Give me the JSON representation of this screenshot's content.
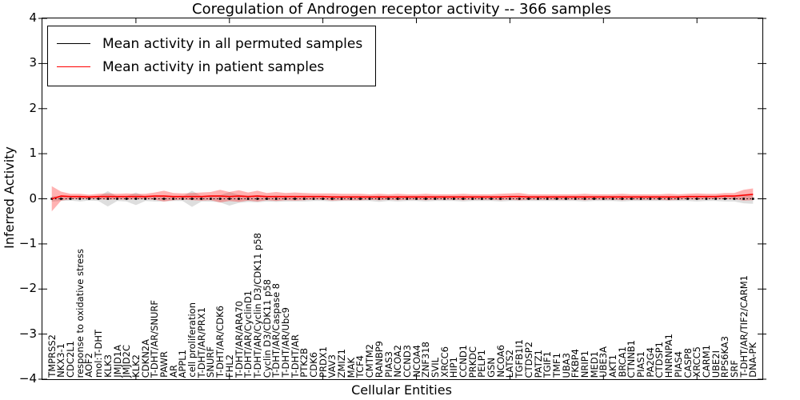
{
  "figure": {
    "title": "Coregulation of Androgen receptor activity -- 366 samples",
    "xlabel": "Cellular Entities",
    "ylabel": "Inferred Activity"
  },
  "legend": {
    "items": [
      {
        "label": "Mean activity in all permuted samples",
        "color": "#000000"
      },
      {
        "label": "Mean activity in patient samples",
        "color": "#ff0000"
      }
    ]
  },
  "chart_data": {
    "type": "line",
    "title": "Coregulation of Androgen receptor activity -- 366 samples",
    "xlabel": "Cellular Entities",
    "ylabel": "Inferred Activity",
    "ylim": [
      -4,
      4
    ],
    "yticks": [
      4,
      3,
      2,
      1,
      0,
      -1,
      -2,
      -3,
      -4
    ],
    "grid": false,
    "legend_position": "upper left",
    "band_note": "values are series means; band = +/- spread shaded around each mean",
    "categories": [
      "TMPRSS2",
      "NKX3-1",
      "CDC2L1",
      "response to oxidative stress",
      "AOF2",
      "mol:T-DHT",
      "KLK3",
      "JMJD1A",
      "JMJD2C",
      "KLK2",
      "CDKN2A",
      "T-DHT/AR/SNURF",
      "PAWR",
      "AR",
      "APPL1",
      "cell proliferation",
      "T-DHT/AR/PRX1",
      "SNURF",
      "T-DHT/AR/CDK6",
      "FHL2",
      "T-DHT/AR/ARA70",
      "T-DHT/AR/CyclinD1",
      "T-DHT/AR/Cyclin D3/CDK11 p58",
      "Cyclin D3/CDK11 p58",
      "T-DHT/AR/Caspase 8",
      "T-DHT/AR/Ubc9",
      "T-DHT/AR",
      "PTK2B",
      "CDK6",
      "PRDX1",
      "VAV3",
      "ZMIZ1",
      "MAK",
      "TCF4",
      "CMTM2",
      "RANBP9",
      "PIAS3",
      "NCOA2",
      "CCND3",
      "NCOA4",
      "ZNF318",
      "SVIL",
      "XRCC6",
      "HIP1",
      "CCND1",
      "PRKDC",
      "PELP1",
      "GSN",
      "NCOA6",
      "LATS2",
      "TGFB1I1",
      "CTDSP2",
      "PATZ1",
      "TGIF1",
      "TMF1",
      "UBA3",
      "FKBP4",
      "NRIP1",
      "MED1",
      "UBE3A",
      "AKT1",
      "BRCA1",
      "CTNNB1",
      "PIAS1",
      "PA2G4",
      "CTDSP1",
      "HNRNPA1",
      "PIAS4",
      "CASP8",
      "XRCC5",
      "CARM1",
      "UBE2I",
      "RPS6KA3",
      "SRF",
      "T-DHT/AR/TIF2/CARM1",
      "DNA-PK"
    ],
    "series": [
      {
        "name": "Mean activity in all permuted samples",
        "color": "#000000",
        "style": "dotted-square-markers",
        "band_color": "#888888",
        "band_opacity": 0.28,
        "values": [
          0,
          0,
          0,
          0,
          0,
          0,
          0,
          0,
          0,
          0,
          0,
          0,
          0,
          0,
          0,
          0,
          0,
          0,
          0,
          0,
          0,
          0,
          0,
          0,
          0,
          0,
          0,
          0,
          0,
          0,
          0,
          0,
          0,
          0,
          0,
          0,
          0,
          0,
          0,
          0,
          0,
          0,
          0,
          0,
          0,
          0,
          0,
          0,
          0,
          0,
          0,
          0,
          0,
          0,
          0,
          0,
          0,
          0,
          0,
          0,
          0,
          0,
          0,
          0,
          0,
          0,
          0,
          0,
          0,
          0,
          0,
          0,
          0,
          0,
          0,
          0
        ],
        "band": [
          0.06,
          0.05,
          0.04,
          0.06,
          0.04,
          0.05,
          0.17,
          0.05,
          0.06,
          0.14,
          0.05,
          0.06,
          0.06,
          0.05,
          0.05,
          0.18,
          0.06,
          0.06,
          0.08,
          0.15,
          0.09,
          0.07,
          0.08,
          0.06,
          0.07,
          0.06,
          0.06,
          0.06,
          0.05,
          0.05,
          0.06,
          0.05,
          0.05,
          0.05,
          0.05,
          0.07,
          0.05,
          0.06,
          0.05,
          0.05,
          0.06,
          0.05,
          0.05,
          0.05,
          0.06,
          0.05,
          0.05,
          0.05,
          0.06,
          0.05,
          0.05,
          0.05,
          0.05,
          0.05,
          0.05,
          0.05,
          0.05,
          0.06,
          0.05,
          0.05,
          0.05,
          0.06,
          0.05,
          0.05,
          0.05,
          0.05,
          0.05,
          0.05,
          0.05,
          0.06,
          0.05,
          0.05,
          0.06,
          0.06,
          0.1,
          0.11
        ]
      },
      {
        "name": "Mean activity in patient samples",
        "color": "#ff0000",
        "style": "solid",
        "band_color": "#ff0000",
        "band_opacity": 0.3,
        "values": [
          0.0,
          0.06,
          0.05,
          0.05,
          0.04,
          0.05,
          0.05,
          0.05,
          0.05,
          0.05,
          0.05,
          0.06,
          0.06,
          0.05,
          0.05,
          0.05,
          0.05,
          0.06,
          0.06,
          0.05,
          0.06,
          0.05,
          0.06,
          0.05,
          0.05,
          0.05,
          0.05,
          0.05,
          0.05,
          0.05,
          0.04,
          0.04,
          0.04,
          0.04,
          0.04,
          0.04,
          0.04,
          0.04,
          0.04,
          0.04,
          0.04,
          0.04,
          0.04,
          0.04,
          0.04,
          0.04,
          0.04,
          0.04,
          0.04,
          0.05,
          0.05,
          0.04,
          0.04,
          0.04,
          0.04,
          0.04,
          0.04,
          0.04,
          0.04,
          0.04,
          0.04,
          0.04,
          0.04,
          0.04,
          0.04,
          0.04,
          0.04,
          0.04,
          0.05,
          0.05,
          0.05,
          0.05,
          0.06,
          0.06,
          0.08,
          0.1
        ],
        "band": [
          0.28,
          0.1,
          0.06,
          0.06,
          0.05,
          0.06,
          0.07,
          0.06,
          0.07,
          0.06,
          0.06,
          0.08,
          0.12,
          0.08,
          0.07,
          0.08,
          0.09,
          0.09,
          0.14,
          0.1,
          0.13,
          0.09,
          0.12,
          0.08,
          0.1,
          0.08,
          0.09,
          0.08,
          0.07,
          0.07,
          0.08,
          0.07,
          0.07,
          0.07,
          0.06,
          0.07,
          0.06,
          0.07,
          0.06,
          0.06,
          0.07,
          0.06,
          0.06,
          0.06,
          0.07,
          0.06,
          0.06,
          0.06,
          0.07,
          0.07,
          0.08,
          0.06,
          0.06,
          0.06,
          0.06,
          0.06,
          0.06,
          0.07,
          0.06,
          0.06,
          0.06,
          0.07,
          0.06,
          0.06,
          0.06,
          0.06,
          0.07,
          0.06,
          0.06,
          0.07,
          0.06,
          0.06,
          0.07,
          0.07,
          0.12,
          0.13
        ]
      }
    ]
  }
}
